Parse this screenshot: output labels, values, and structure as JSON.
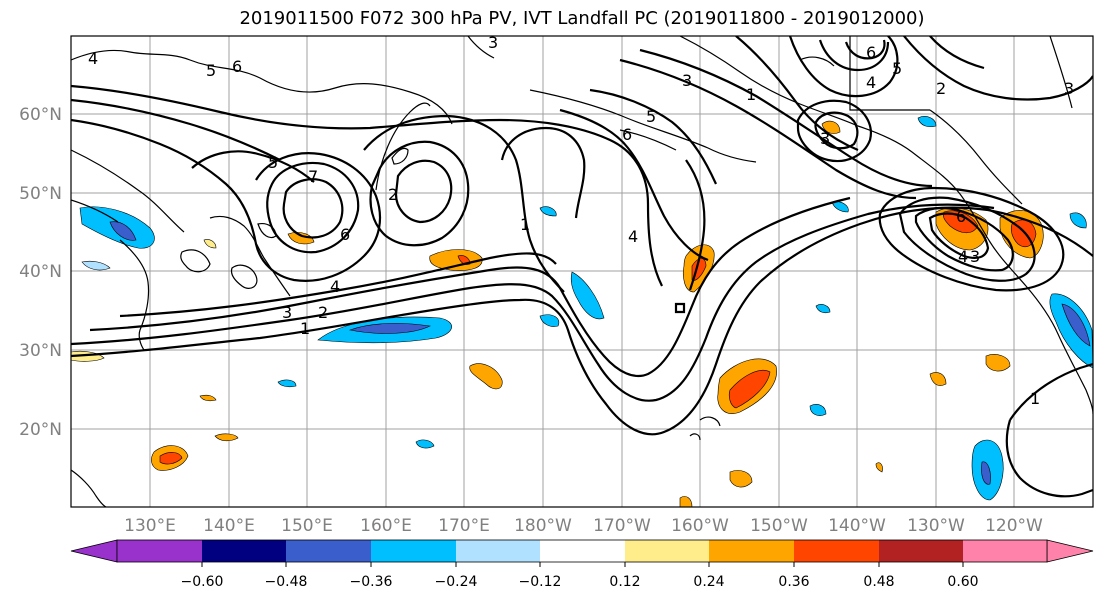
{
  "title": "2019011500 F072 300 hPa PV, IVT Landfall PC (2019011800 - 2019012000)",
  "lat_labels": [
    "60°N",
    "50°N",
    "40°N",
    "30°N",
    "20°N"
  ],
  "lon_labels": [
    "130°E",
    "140°E",
    "150°E",
    "160°E",
    "170°E",
    "180°W",
    "170°W",
    "160°W",
    "150°W",
    "140°W",
    "130°W",
    "120°W"
  ],
  "colorbar": {
    "colors": [
      "#9932cc",
      "#000080",
      "#3a5fcd",
      "#00bfff",
      "#b0e2ff",
      "#ffffff",
      "#ffec8b",
      "#ffa500",
      "#ff4500",
      "#b22222",
      "#ff82ab"
    ],
    "ticks": [
      "−0.60",
      "−0.48",
      "−0.36",
      "−0.24",
      "−0.12",
      "0.12",
      "0.24",
      "0.36",
      "0.48",
      "0.60"
    ]
  },
  "contour_labels": [
    "5",
    "6",
    "7",
    "5",
    "6",
    "2",
    "3",
    "2",
    "1",
    "4",
    "1",
    "3",
    "1",
    "4",
    "5",
    "3",
    "4",
    "6",
    "6",
    "5",
    "6",
    "4",
    "3",
    "2",
    "3",
    "1",
    "4",
    "3"
  ],
  "axis_color": "#808080",
  "contour_color": "#000000"
}
